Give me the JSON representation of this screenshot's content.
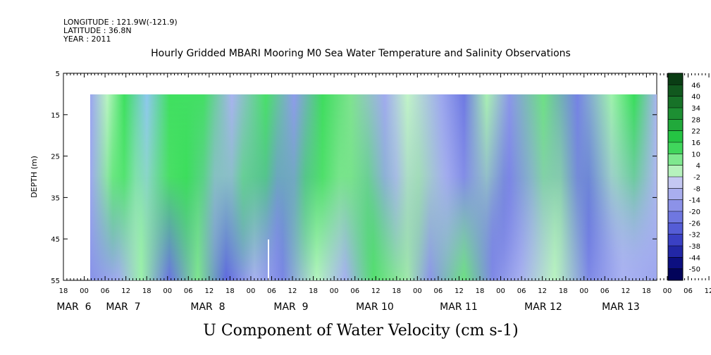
{
  "header": {
    "longitude": "LONGITUDE : 121.9W(-121.9)",
    "latitude": "LATITUDE : 36.8N",
    "year": "YEAR : 2011",
    "title": "Hourly Gridded MBARI Mooring M0 Sea Water Temperature and Salinity Observations"
  },
  "chart_data": {
    "type": "heatmap",
    "title": "Hourly Gridded MBARI Mooring M0 Sea Water Temperature and Salinity Observations",
    "xlabel": "U Component of Water Velocity (cm s-1)",
    "ylabel": "DEPTH (m)",
    "ylim": [
      5,
      55
    ],
    "y_inverted": true,
    "y_ticks": [
      5,
      15,
      25,
      35,
      45,
      55
    ],
    "data_depth_range": [
      10,
      55
    ],
    "time_range": [
      "2011-03-05 18:00",
      "2011-03-13 20:00"
    ],
    "hour_ticks": [
      "18",
      "00",
      "06",
      "12",
      "18",
      "00",
      "06",
      "12",
      "18",
      "00",
      "06",
      "12",
      "18",
      "00",
      "06",
      "12",
      "18",
      "00",
      "06",
      "12",
      "18",
      "00",
      "06",
      "12",
      "18",
      "00",
      "06",
      "12",
      "18",
      "00",
      "06",
      "12",
      "18"
    ],
    "day_labels": [
      "MAR  6",
      "MAR  7",
      "MAR  8",
      "MAR  9",
      "MAR 10",
      "MAR 11",
      "MAR 12",
      "MAR 13"
    ],
    "colorbar": {
      "labels": [
        "46",
        "40",
        "34",
        "28",
        "22",
        "16",
        "10",
        "4",
        "-2",
        "-8",
        "-14",
        "-20",
        "-26",
        "-32",
        "-38",
        "-44",
        "-50"
      ],
      "range": [
        -50,
        50
      ],
      "colors": [
        "#0a3d14",
        "#11581e",
        "#177228",
        "#1d8f33",
        "#21a93b",
        "#25c443",
        "#40d65c",
        "#7ee88f",
        "#b6f2bd",
        "#c4c8f2",
        "#a9aeee",
        "#8c92e8",
        "#6f77e0",
        "#555dd6",
        "#3a40c4",
        "#2227a6",
        "#0c0f80",
        "#02035a"
      ]
    }
  }
}
